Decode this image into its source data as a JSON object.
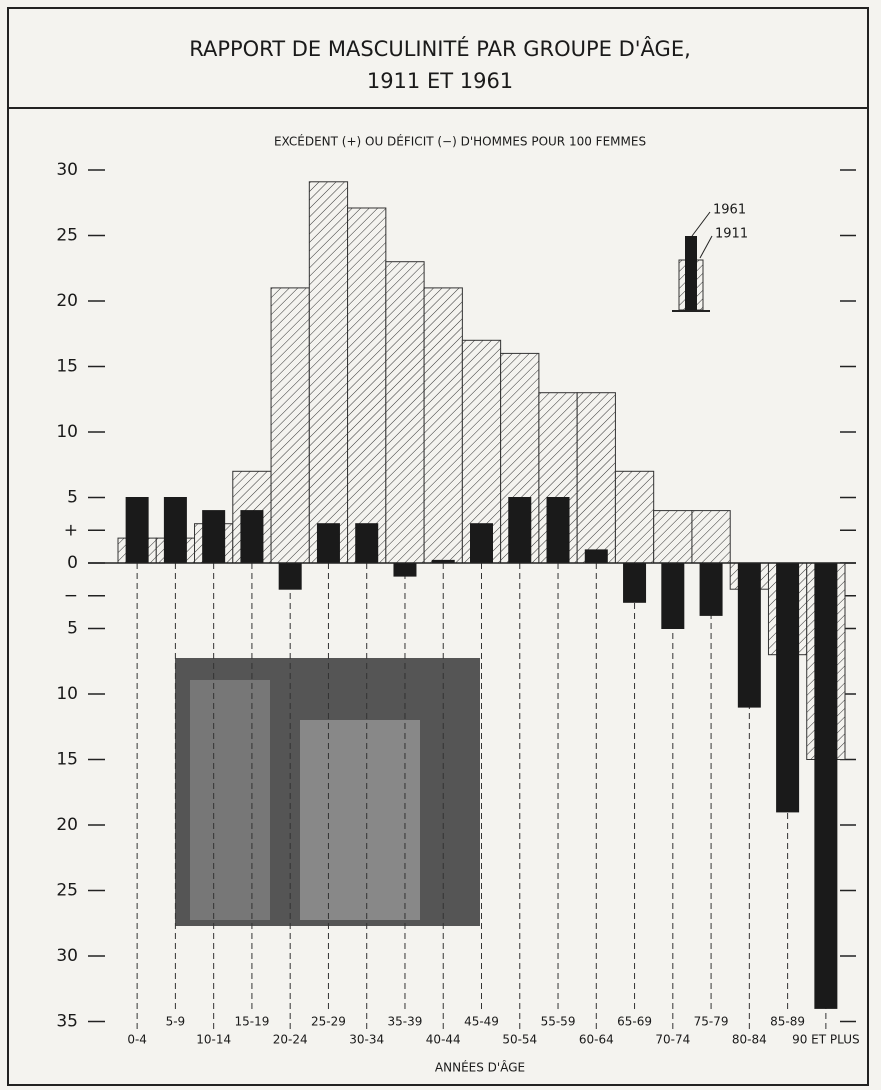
{
  "chart_data": {
    "type": "bar",
    "title": [
      "RAPPORT DE MASCULINITÉ PAR GROUPE D'ÂGE,",
      "1911 ET 1961"
    ],
    "subtitle": "EXCÉDENT (+) OU DÉFICIT (−) D'HOMMES POUR 100 FEMMES",
    "xlabel": "ANNÉES D'ÂGE",
    "categories": [
      "0-4",
      "5-9",
      "10-14",
      "15-19",
      "20-24",
      "25-29",
      "30-34",
      "35-39",
      "40-44",
      "45-49",
      "50-54",
      "55-59",
      "60-64",
      "65-69",
      "70-74",
      "75-79",
      "80-84",
      "85-89",
      "90 ET PLUS"
    ],
    "series": [
      {
        "name": "1911",
        "color": "#333333",
        "values": [
          1.9,
          1.9,
          3.0,
          7.0,
          21.0,
          29.1,
          27.1,
          23.0,
          21.0,
          17.0,
          16.0,
          13.0,
          13.0,
          7.0,
          4.0,
          4.0,
          -2.0,
          -7.0,
          -15.0
        ]
      },
      {
        "name": "1961",
        "color": "#1a1a1a",
        "values": [
          5.0,
          5.0,
          4.0,
          4.0,
          -2.0,
          3.0,
          3.0,
          -1.0,
          0.2,
          3.0,
          5.0,
          5.0,
          1.0,
          -3.0,
          -5.0,
          -4.0,
          -11.0,
          -19.0,
          -34.0
        ]
      }
    ],
    "ylim": [
      -35,
      30
    ],
    "yticks": [
      30,
      25,
      20,
      15,
      10,
      5,
      {
        "value": 2.5,
        "label": "+"
      },
      0,
      {
        "value": -2.5,
        "label": "−"
      },
      {
        "value": -5,
        "label": "5"
      },
      {
        "value": -10,
        "label": "10"
      },
      {
        "value": -15,
        "label": "15"
      },
      {
        "value": -20,
        "label": "20"
      },
      {
        "value": -25,
        "label": "25"
      },
      {
        "value": -30,
        "label": "30"
      },
      {
        "value": -35,
        "label": "35"
      }
    ],
    "grid": false
  }
}
